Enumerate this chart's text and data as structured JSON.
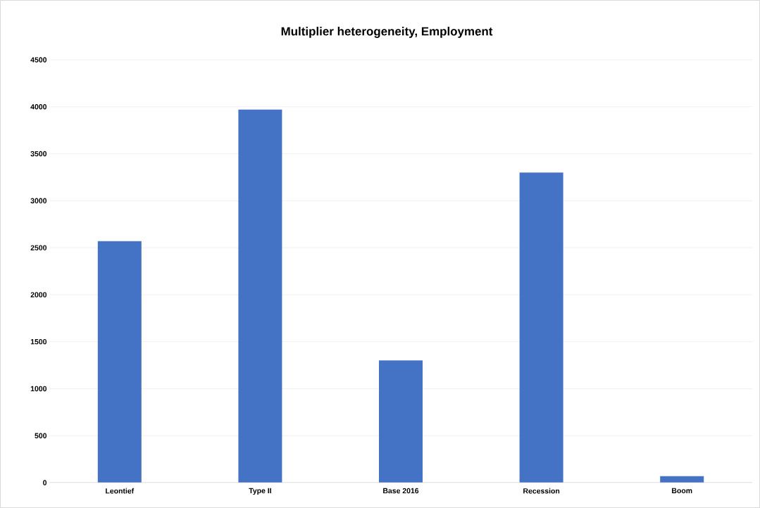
{
  "chart_data": {
    "type": "bar",
    "title": "Multiplier heterogeneity, Employment",
    "categories": [
      "Leontief",
      "Type II",
      "Base 2016",
      "Recession",
      "Boom"
    ],
    "values": [
      2570,
      3970,
      1300,
      3300,
      70
    ],
    "color": "#4472c4",
    "ylim": [
      0,
      4500
    ],
    "yticks": [
      0,
      500,
      1000,
      1500,
      2000,
      2500,
      3000,
      3500,
      4000,
      4500
    ],
    "grid": "y"
  }
}
